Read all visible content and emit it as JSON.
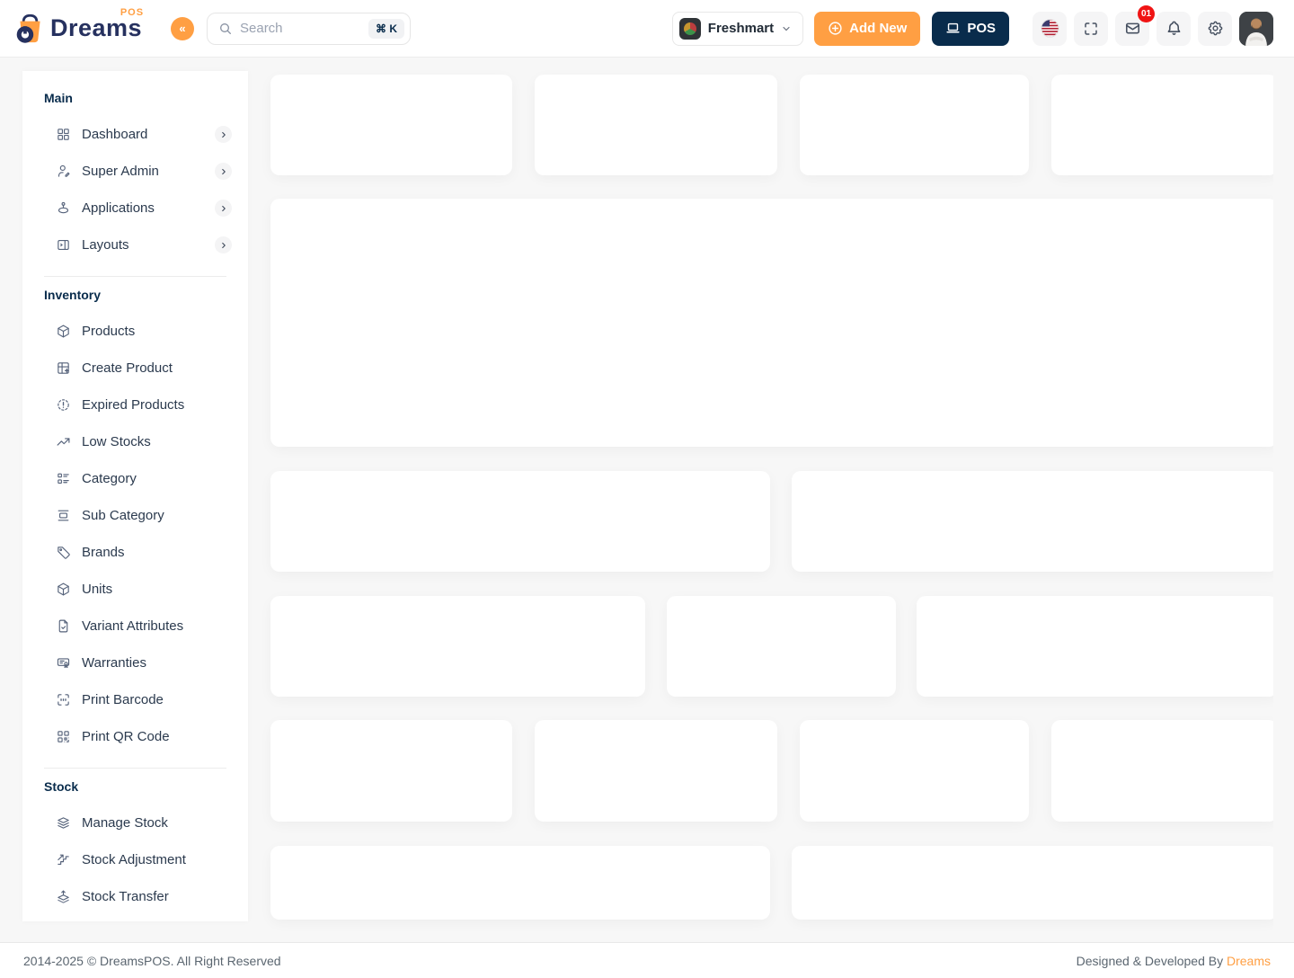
{
  "app": {
    "brand": "Dreams",
    "brand_sup": "POS"
  },
  "header": {
    "search": {
      "placeholder": "Search",
      "shortcut": "⌘ K"
    },
    "store": {
      "name": "Freshmart"
    },
    "add_new_label": "Add New",
    "pos_label": "POS",
    "mail_badge": "01"
  },
  "sidebar": {
    "sections": [
      {
        "title": "Main",
        "items": [
          {
            "label": "Dashboard",
            "icon": "dashboard",
            "has_submenu": true
          },
          {
            "label": "Super Admin",
            "icon": "user-edit",
            "has_submenu": true
          },
          {
            "label": "Applications",
            "icon": "apps",
            "has_submenu": true
          },
          {
            "label": "Layouts",
            "icon": "layout",
            "has_submenu": true
          }
        ]
      },
      {
        "title": "Inventory",
        "items": [
          {
            "label": "Products",
            "icon": "package",
            "has_submenu": false
          },
          {
            "label": "Create Product",
            "icon": "table-plus",
            "has_submenu": false
          },
          {
            "label": "Expired Products",
            "icon": "alert-dashed",
            "has_submenu": false
          },
          {
            "label": "Low Stocks",
            "icon": "trending-up",
            "has_submenu": false
          },
          {
            "label": "Category",
            "icon": "list-details",
            "has_submenu": false
          },
          {
            "label": "Sub Category",
            "icon": "carousel",
            "has_submenu": false
          },
          {
            "label": "Brands",
            "icon": "tag",
            "has_submenu": false
          },
          {
            "label": "Units",
            "icon": "box-3d",
            "has_submenu": false
          },
          {
            "label": "Variant Attributes",
            "icon": "file-check",
            "has_submenu": false
          },
          {
            "label": "Warranties",
            "icon": "certificate",
            "has_submenu": false
          },
          {
            "label": "Print Barcode",
            "icon": "scan",
            "has_submenu": false
          },
          {
            "label": "Print QR Code",
            "icon": "qrcode",
            "has_submenu": false
          }
        ]
      },
      {
        "title": "Stock",
        "items": [
          {
            "label": "Manage Stock",
            "icon": "layers",
            "has_submenu": false
          },
          {
            "label": "Stock Adjustment",
            "icon": "stairs",
            "has_submenu": false
          },
          {
            "label": "Stock Transfer",
            "icon": "stack-push",
            "has_submenu": false
          }
        ]
      }
    ]
  },
  "footer": {
    "copyright": "2014-2025 © DreamsPOS. All Right Reserved",
    "credit_prefix": "Designed & Developed By ",
    "credit_brand": "Dreams"
  },
  "colors": {
    "primary": "#FF9F43",
    "secondary": "#092C4C",
    "badge_red": "#F01414",
    "background": "#F7F7F7"
  }
}
